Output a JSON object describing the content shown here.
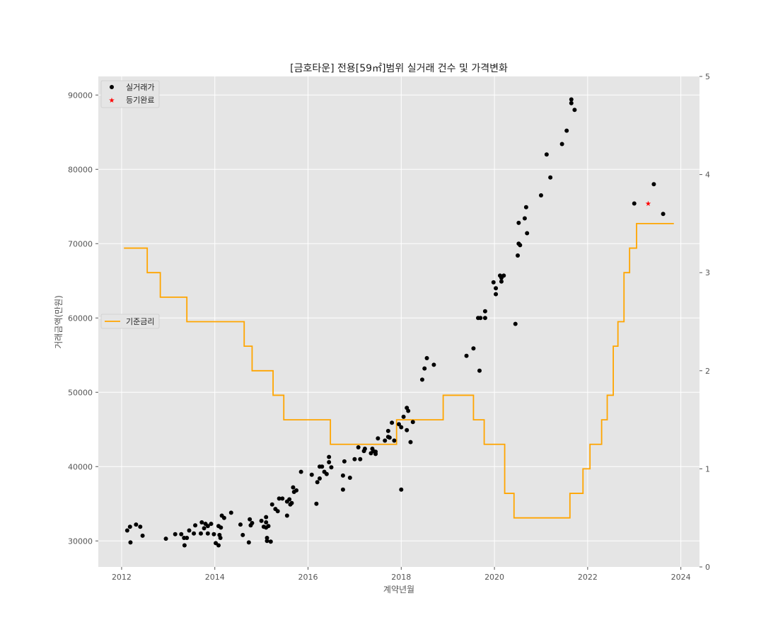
{
  "chart_data": {
    "type": "scatter",
    "title": "[금호타운] 전용[59㎡]범위 실거래 건수 및 가격변화",
    "xlabel": "계약년월",
    "ylabel": "거래금액(만원)",
    "xlim": [
      2011.5,
      2024.4
    ],
    "ylim": [
      26500,
      92500
    ],
    "y2lim": [
      0,
      5
    ],
    "x_ticks": [
      2012,
      2014,
      2016,
      2018,
      2020,
      2022,
      2024
    ],
    "y_ticks": [
      30000,
      40000,
      50000,
      60000,
      70000,
      80000,
      90000
    ],
    "y2_ticks": [
      0,
      1,
      2,
      3,
      4,
      5
    ],
    "grid": true,
    "legend_left": {
      "position": "upper-left",
      "entries": [
        "실거래가",
        "등기완료"
      ]
    },
    "legend_right": {
      "position": "center-left",
      "entries": [
        "기준금리"
      ]
    },
    "colors": {
      "background": "#e5e5e5",
      "grid": "#ffffff",
      "points": "#000000",
      "registered": "#ff0000",
      "rate_line": "#ffa500"
    },
    "series": [
      {
        "name": "실거래가",
        "marker": "circle",
        "points": [
          [
            2012.12,
            31400
          ],
          [
            2012.18,
            31900
          ],
          [
            2012.19,
            29800
          ],
          [
            2012.31,
            32200
          ],
          [
            2012.4,
            31900
          ],
          [
            2012.45,
            30700
          ],
          [
            2012.95,
            30300
          ],
          [
            2013.15,
            30900
          ],
          [
            2013.28,
            30900
          ],
          [
            2013.34,
            30400
          ],
          [
            2013.35,
            29400
          ],
          [
            2013.4,
            30400
          ],
          [
            2013.45,
            31400
          ],
          [
            2013.55,
            31000
          ],
          [
            2013.58,
            32100
          ],
          [
            2013.7,
            31000
          ],
          [
            2013.72,
            32500
          ],
          [
            2013.77,
            31700
          ],
          [
            2013.8,
            32300
          ],
          [
            2013.85,
            31000
          ],
          [
            2013.85,
            32000
          ],
          [
            2013.92,
            32300
          ],
          [
            2013.98,
            30900
          ],
          [
            2014.02,
            29700
          ],
          [
            2014.08,
            29400
          ],
          [
            2014.08,
            32000
          ],
          [
            2014.1,
            30800
          ],
          [
            2014.12,
            30400
          ],
          [
            2014.13,
            31800
          ],
          [
            2014.15,
            33400
          ],
          [
            2014.2,
            33100
          ],
          [
            2014.35,
            33800
          ],
          [
            2014.55,
            32200
          ],
          [
            2014.6,
            30800
          ],
          [
            2014.73,
            29800
          ],
          [
            2014.75,
            32900
          ],
          [
            2014.77,
            32100
          ],
          [
            2014.8,
            32400
          ],
          [
            2015.0,
            32700
          ],
          [
            2015.05,
            31900
          ],
          [
            2015.1,
            33200
          ],
          [
            2015.1,
            32500
          ],
          [
            2015.1,
            31800
          ],
          [
            2015.12,
            30400
          ],
          [
            2015.12,
            30000
          ],
          [
            2015.15,
            32000
          ],
          [
            2015.2,
            29900
          ],
          [
            2015.23,
            34900
          ],
          [
            2015.3,
            34300
          ],
          [
            2015.35,
            34000
          ],
          [
            2015.38,
            35700
          ],
          [
            2015.45,
            35700
          ],
          [
            2015.55,
            33400
          ],
          [
            2015.55,
            35300
          ],
          [
            2015.6,
            35600
          ],
          [
            2015.62,
            34900
          ],
          [
            2015.65,
            35100
          ],
          [
            2015.68,
            37200
          ],
          [
            2015.7,
            36600
          ],
          [
            2015.75,
            36800
          ],
          [
            2015.85,
            39300
          ],
          [
            2016.08,
            38900
          ],
          [
            2016.18,
            35000
          ],
          [
            2016.2,
            37900
          ],
          [
            2016.25,
            38400
          ],
          [
            2016.25,
            40000
          ],
          [
            2016.3,
            40000
          ],
          [
            2016.35,
            39300
          ],
          [
            2016.4,
            39000
          ],
          [
            2016.45,
            41300
          ],
          [
            2016.45,
            40600
          ],
          [
            2016.5,
            39900
          ],
          [
            2016.75,
            36900
          ],
          [
            2016.75,
            38800
          ],
          [
            2016.78,
            40700
          ],
          [
            2016.9,
            38500
          ],
          [
            2017.0,
            41000
          ],
          [
            2017.08,
            42600
          ],
          [
            2017.12,
            41000
          ],
          [
            2017.2,
            42100
          ],
          [
            2017.22,
            42400
          ],
          [
            2017.35,
            41800
          ],
          [
            2017.38,
            42400
          ],
          [
            2017.4,
            42100
          ],
          [
            2017.45,
            41700
          ],
          [
            2017.45,
            42000
          ],
          [
            2017.5,
            43800
          ],
          [
            2017.65,
            43500
          ],
          [
            2017.72,
            44000
          ],
          [
            2017.72,
            44800
          ],
          [
            2017.75,
            43900
          ],
          [
            2017.8,
            45900
          ],
          [
            2017.85,
            43500
          ],
          [
            2017.95,
            45700
          ],
          [
            2018.0,
            45300
          ],
          [
            2018.0,
            36900
          ],
          [
            2018.05,
            46700
          ],
          [
            2018.12,
            47900
          ],
          [
            2018.15,
            47500
          ],
          [
            2018.12,
            44900
          ],
          [
            2018.2,
            43300
          ],
          [
            2018.25,
            46000
          ],
          [
            2018.45,
            51700
          ],
          [
            2018.5,
            53200
          ],
          [
            2018.55,
            54600
          ],
          [
            2018.7,
            53700
          ],
          [
            2019.4,
            54900
          ],
          [
            2019.55,
            55900
          ],
          [
            2019.65,
            60000
          ],
          [
            2019.7,
            60000
          ],
          [
            2019.68,
            52900
          ],
          [
            2019.8,
            60900
          ],
          [
            2019.8,
            60000
          ],
          [
            2019.98,
            64800
          ],
          [
            2020.03,
            64000
          ],
          [
            2020.03,
            63200
          ],
          [
            2020.12,
            65700
          ],
          [
            2020.15,
            65400
          ],
          [
            2020.15,
            64900
          ],
          [
            2020.2,
            65700
          ],
          [
            2020.45,
            59200
          ],
          [
            2020.5,
            68400
          ],
          [
            2020.52,
            70000
          ],
          [
            2020.52,
            72800
          ],
          [
            2020.55,
            69800
          ],
          [
            2020.65,
            73400
          ],
          [
            2020.68,
            74900
          ],
          [
            2020.7,
            71400
          ],
          [
            2021.0,
            76500
          ],
          [
            2021.12,
            82000
          ],
          [
            2021.2,
            78900
          ],
          [
            2021.45,
            83400
          ],
          [
            2021.55,
            85200
          ],
          [
            2021.65,
            89400
          ],
          [
            2021.65,
            88900
          ],
          [
            2021.72,
            88000
          ],
          [
            2023.0,
            75400
          ],
          [
            2023.42,
            78000
          ],
          [
            2023.62,
            74000
          ]
        ]
      },
      {
        "name": "등기완료",
        "marker": "star",
        "points": [
          [
            2023.3,
            75400
          ]
        ]
      },
      {
        "name": "기준금리",
        "axis": "right",
        "type": "step",
        "points": [
          [
            2012.05,
            3.25
          ],
          [
            2012.55,
            3.0
          ],
          [
            2012.83,
            2.75
          ],
          [
            2013.4,
            2.5
          ],
          [
            2014.63,
            2.25
          ],
          [
            2014.8,
            2.0
          ],
          [
            2015.25,
            1.75
          ],
          [
            2015.48,
            1.5
          ],
          [
            2016.48,
            1.25
          ],
          [
            2017.9,
            1.5
          ],
          [
            2018.9,
            1.75
          ],
          [
            2019.55,
            1.5
          ],
          [
            2019.78,
            1.25
          ],
          [
            2020.22,
            0.75
          ],
          [
            2020.42,
            0.5
          ],
          [
            2021.62,
            0.75
          ],
          [
            2021.9,
            1.0
          ],
          [
            2022.05,
            1.25
          ],
          [
            2022.3,
            1.5
          ],
          [
            2022.42,
            1.75
          ],
          [
            2022.55,
            2.25
          ],
          [
            2022.65,
            2.5
          ],
          [
            2022.78,
            3.0
          ],
          [
            2022.9,
            3.25
          ],
          [
            2023.05,
            3.5
          ],
          [
            2023.85,
            3.5
          ]
        ]
      }
    ]
  }
}
